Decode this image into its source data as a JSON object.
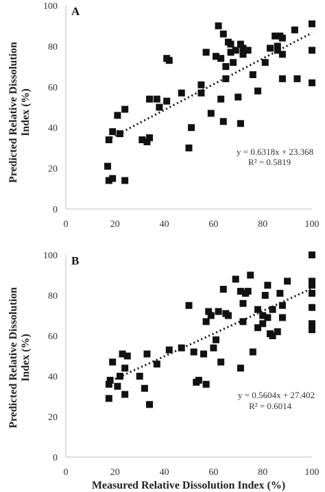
{
  "y_axis_label_line1": "Predicted Relative Dissolution",
  "y_axis_label_line2": "Index  (%)",
  "x_axis_label": "Measured Relative Dissolution Index  (%)",
  "chart_data": [
    {
      "type": "scatter",
      "panel_label": "A",
      "xlim": [
        0,
        100
      ],
      "ylim": [
        0,
        100
      ],
      "x_ticks": [
        "0",
        "20",
        "40",
        "60",
        "80",
        "100"
      ],
      "y_ticks": [
        "0",
        "20",
        "40",
        "60",
        "80",
        "100"
      ],
      "trendline": {
        "slope": 0.6318,
        "intercept": 23.368,
        "x_range": [
          17,
          100
        ]
      },
      "equation": "y = 0.6318x + 23.368",
      "r2": "R² = 0.5819",
      "points": [
        {
          "x": 17,
          "y": 21
        },
        {
          "x": 17.5,
          "y": 14
        },
        {
          "x": 19,
          "y": 15
        },
        {
          "x": 24,
          "y": 14
        },
        {
          "x": 17.5,
          "y": 34
        },
        {
          "x": 19,
          "y": 38
        },
        {
          "x": 21,
          "y": 46
        },
        {
          "x": 22,
          "y": 37
        },
        {
          "x": 24,
          "y": 49
        },
        {
          "x": 31,
          "y": 34
        },
        {
          "x": 33,
          "y": 33
        },
        {
          "x": 34,
          "y": 54
        },
        {
          "x": 34,
          "y": 35
        },
        {
          "x": 37,
          "y": 54
        },
        {
          "x": 38,
          "y": 50
        },
        {
          "x": 41,
          "y": 74
        },
        {
          "x": 42,
          "y": 73
        },
        {
          "x": 41,
          "y": 53
        },
        {
          "x": 47,
          "y": 57
        },
        {
          "x": 50,
          "y": 30
        },
        {
          "x": 51,
          "y": 40
        },
        {
          "x": 55,
          "y": 61
        },
        {
          "x": 55,
          "y": 57
        },
        {
          "x": 57,
          "y": 77
        },
        {
          "x": 59,
          "y": 47
        },
        {
          "x": 61,
          "y": 75
        },
        {
          "x": 62,
          "y": 90
        },
        {
          "x": 63,
          "y": 74
        },
        {
          "x": 63,
          "y": 54
        },
        {
          "x": 64,
          "y": 43
        },
        {
          "x": 64,
          "y": 86
        },
        {
          "x": 65,
          "y": 70
        },
        {
          "x": 65,
          "y": 64
        },
        {
          "x": 66,
          "y": 82
        },
        {
          "x": 67,
          "y": 77
        },
        {
          "x": 67,
          "y": 81
        },
        {
          "x": 68,
          "y": 72
        },
        {
          "x": 69,
          "y": 78
        },
        {
          "x": 70,
          "y": 55
        },
        {
          "x": 71,
          "y": 42
        },
        {
          "x": 71,
          "y": 81
        },
        {
          "x": 72,
          "y": 76
        },
        {
          "x": 72,
          "y": 79
        },
        {
          "x": 74,
          "y": 78
        },
        {
          "x": 76,
          "y": 66
        },
        {
          "x": 78,
          "y": 58
        },
        {
          "x": 81,
          "y": 72
        },
        {
          "x": 83,
          "y": 79
        },
        {
          "x": 85,
          "y": 85
        },
        {
          "x": 86,
          "y": 78
        },
        {
          "x": 86,
          "y": 80
        },
        {
          "x": 87,
          "y": 85
        },
        {
          "x": 88,
          "y": 84
        },
        {
          "x": 88,
          "y": 76
        },
        {
          "x": 88,
          "y": 64
        },
        {
          "x": 93,
          "y": 88
        },
        {
          "x": 94,
          "y": 64
        },
        {
          "x": 100,
          "y": 91
        },
        {
          "x": 100,
          "y": 78
        },
        {
          "x": 100,
          "y": 62
        }
      ]
    },
    {
      "type": "scatter",
      "panel_label": "B",
      "xlim": [
        0,
        100
      ],
      "ylim": [
        0,
        100
      ],
      "x_ticks": [
        "0",
        "20",
        "40",
        "60",
        "80",
        "100"
      ],
      "y_ticks": [
        "0",
        "20",
        "40",
        "60",
        "80",
        "100"
      ],
      "trendline": {
        "slope": 0.5604,
        "intercept": 27.402,
        "x_range": [
          17,
          100
        ]
      },
      "equation": "y = 0.5604x + 27.402",
      "r2": "R² = 0.6014",
      "points": [
        {
          "x": 17.5,
          "y": 29
        },
        {
          "x": 17.5,
          "y": 36
        },
        {
          "x": 18,
          "y": 38
        },
        {
          "x": 19,
          "y": 47
        },
        {
          "x": 21,
          "y": 35
        },
        {
          "x": 22,
          "y": 40
        },
        {
          "x": 23,
          "y": 51
        },
        {
          "x": 24,
          "y": 31
        },
        {
          "x": 24,
          "y": 44
        },
        {
          "x": 25,
          "y": 50
        },
        {
          "x": 30,
          "y": 40
        },
        {
          "x": 32,
          "y": 34
        },
        {
          "x": 33,
          "y": 51
        },
        {
          "x": 34,
          "y": 26
        },
        {
          "x": 37,
          "y": 46
        },
        {
          "x": 42,
          "y": 53
        },
        {
          "x": 47,
          "y": 54
        },
        {
          "x": 50,
          "y": 75
        },
        {
          "x": 52,
          "y": 52
        },
        {
          "x": 53,
          "y": 37
        },
        {
          "x": 54,
          "y": 38
        },
        {
          "x": 56,
          "y": 51
        },
        {
          "x": 57,
          "y": 36
        },
        {
          "x": 57,
          "y": 67
        },
        {
          "x": 58,
          "y": 72
        },
        {
          "x": 59,
          "y": 70
        },
        {
          "x": 60,
          "y": 54
        },
        {
          "x": 61,
          "y": 58
        },
        {
          "x": 62,
          "y": 72
        },
        {
          "x": 63,
          "y": 47
        },
        {
          "x": 64,
          "y": 83
        },
        {
          "x": 65,
          "y": 71
        },
        {
          "x": 66,
          "y": 70
        },
        {
          "x": 69,
          "y": 88
        },
        {
          "x": 71,
          "y": 82
        },
        {
          "x": 71,
          "y": 44
        },
        {
          "x": 72,
          "y": 67
        },
        {
          "x": 72,
          "y": 76
        },
        {
          "x": 73,
          "y": 81
        },
        {
          "x": 74,
          "y": 82
        },
        {
          "x": 75,
          "y": 90
        },
        {
          "x": 76,
          "y": 52
        },
        {
          "x": 78,
          "y": 73
        },
        {
          "x": 78,
          "y": 64
        },
        {
          "x": 80,
          "y": 66
        },
        {
          "x": 80,
          "y": 70
        },
        {
          "x": 81,
          "y": 80
        },
        {
          "x": 82,
          "y": 85
        },
        {
          "x": 82,
          "y": 69
        },
        {
          "x": 83,
          "y": 61
        },
        {
          "x": 84,
          "y": 73
        },
        {
          "x": 84,
          "y": 60
        },
        {
          "x": 86,
          "y": 62
        },
        {
          "x": 87,
          "y": 81
        },
        {
          "x": 88,
          "y": 75
        },
        {
          "x": 88,
          "y": 69
        },
        {
          "x": 90,
          "y": 87
        },
        {
          "x": 100,
          "y": 100
        },
        {
          "x": 100,
          "y": 87
        },
        {
          "x": 100,
          "y": 85
        },
        {
          "x": 100,
          "y": 81
        },
        {
          "x": 100,
          "y": 74
        },
        {
          "x": 100,
          "y": 66
        },
        {
          "x": 100,
          "y": 63
        }
      ]
    }
  ]
}
